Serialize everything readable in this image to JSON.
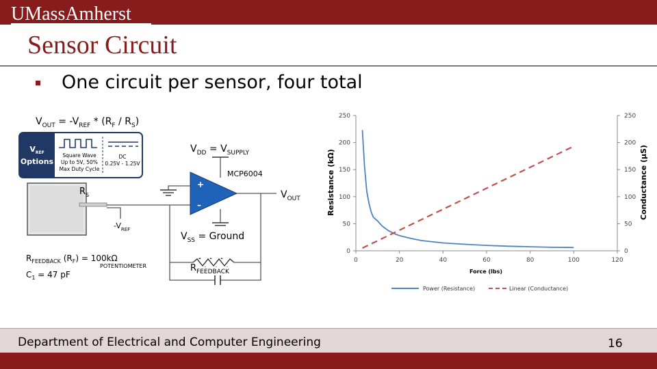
{
  "header": {
    "logo_text": "UMassAmherst"
  },
  "slide": {
    "title": "Sensor Circuit",
    "bullets": [
      "One circuit per sensor, four total"
    ]
  },
  "circuit": {
    "vout_formula": {
      "a": "V",
      "a_sub": "OUT",
      "b": " = -V",
      "b_sub": "REF",
      "c": " * (R",
      "c_sub": "F",
      "d": " / R",
      "d_sub": "S",
      "e": ")"
    },
    "vref_options": {
      "v": "V",
      "v_sub": "REF",
      "label": "Options"
    },
    "square_wave": [
      "Square Wave",
      "Up to 5V, 50%",
      "Max Duty Cycle"
    ],
    "dc": [
      "DC",
      "0.25V - 1.25V"
    ],
    "vdd": {
      "a": "V",
      "a_sub": "DD",
      "b": " = V",
      "b_sub": "SUPPLY"
    },
    "opamp_name": "MCP6004",
    "plus_sign": "+",
    "minus_sign": "–",
    "vout": {
      "a": "V",
      "a_sub": "OUT"
    },
    "rs": {
      "a": "R",
      "a_sub": "S"
    },
    "neg_vref": {
      "a": "-V",
      "a_sub": "REF"
    },
    "vss": {
      "a": "V",
      "a_sub": "SS",
      "b": " = Ground"
    },
    "rfeedback_label": {
      "a": "R",
      "a_sub": "FEEDBACK"
    },
    "rfeedback_value": {
      "a": "R",
      "a_sub": "FEEDBACK",
      "b": " (R",
      "b_sub": "F",
      "c": ") = 100kΩ"
    },
    "potentiometer": "POTENTIOMETER",
    "c1": {
      "a": "C",
      "a_sub": "1",
      "b": " = 47 pF"
    }
  },
  "chart_data": {
    "type": "line",
    "xlabel": "Force (lbs)",
    "ylabel": "Resistance (kΩ)",
    "y2label": "Conductance (µS)",
    "xlim": [
      0,
      120
    ],
    "ylim": [
      0,
      250
    ],
    "y2lim": [
      0,
      250
    ],
    "x_ticks": [
      0,
      20,
      40,
      60,
      80,
      100,
      120
    ],
    "y_ticks": [
      0,
      50,
      100,
      150,
      200,
      250
    ],
    "y2_ticks": [
      0,
      50,
      100,
      150,
      200,
      250
    ],
    "grid": false,
    "legend_position": "bottom",
    "series": [
      {
        "name": "Power (Resistance)",
        "axis": "left",
        "style": "solid",
        "color": "#4f81bd",
        "x": [
          3,
          4,
          5,
          6,
          7,
          8,
          10,
          12,
          15,
          18,
          20,
          25,
          30,
          40,
          50,
          60,
          70,
          80,
          90,
          100
        ],
        "y": [
          223,
          155,
          110,
          88,
          72,
          62,
          55,
          46,
          37,
          31,
          28,
          23,
          19,
          14.5,
          12,
          10,
          8.5,
          7.5,
          6.5,
          6
        ]
      },
      {
        "name": "Linear (Conductance)",
        "axis": "right",
        "style": "dashed",
        "color": "#c0504d",
        "x": [
          3,
          100
        ],
        "y": [
          5,
          193
        ]
      }
    ]
  }
}
